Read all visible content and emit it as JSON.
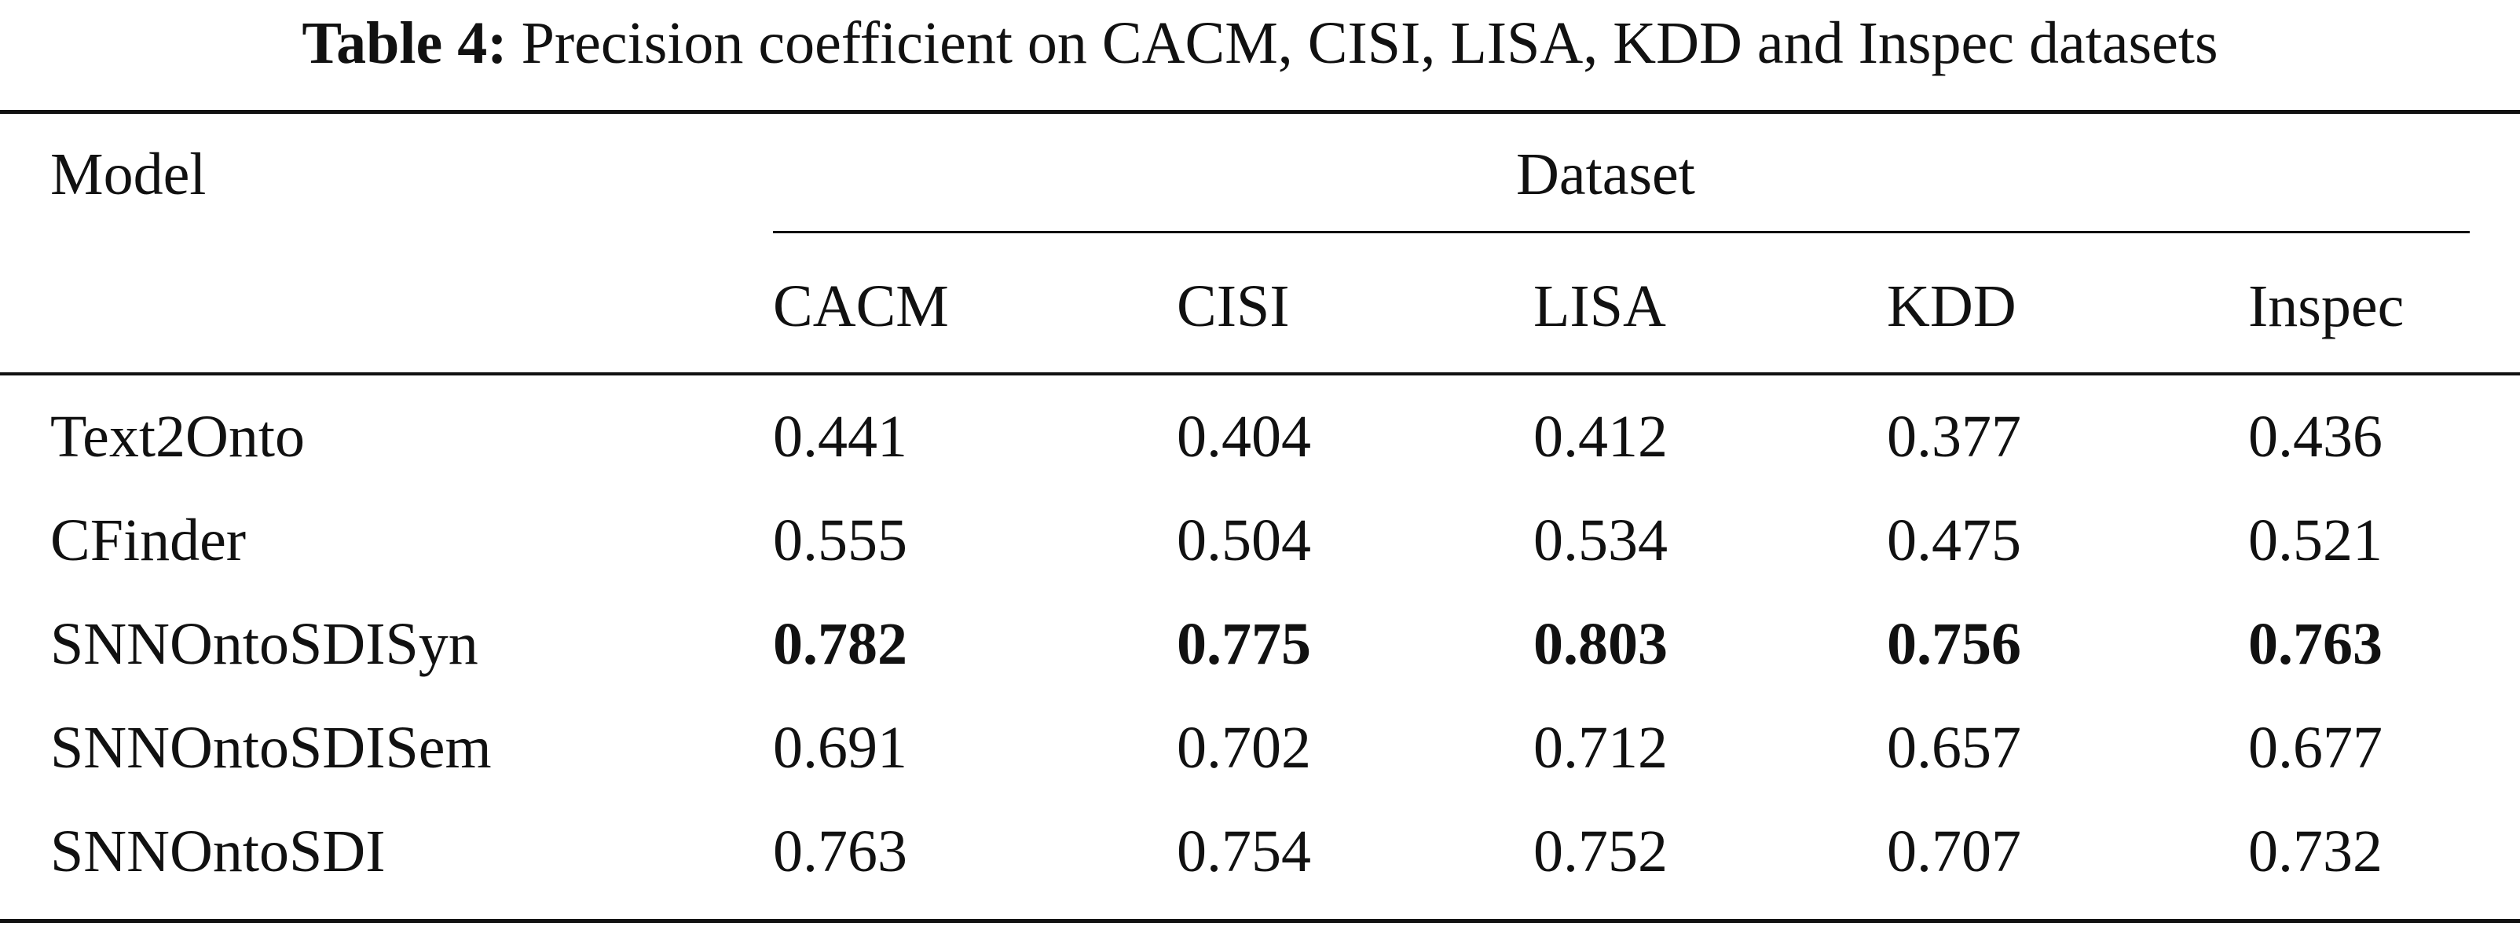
{
  "caption": {
    "label": "Table 4:",
    "text": "Precision coefficient on CACM, CISI, LISA, KDD and Inspec datasets"
  },
  "header": {
    "model": "Model",
    "group": "Dataset",
    "columns": [
      "CACM",
      "CISI",
      "LISA",
      "KDD",
      "Inspec"
    ]
  },
  "rows": [
    {
      "model": "Text2Onto",
      "values": [
        "0.441",
        "0.404",
        "0.412",
        "0.377",
        "0.436"
      ],
      "bold": false
    },
    {
      "model": "CFinder",
      "values": [
        "0.555",
        "0.504",
        "0.534",
        "0.475",
        "0.521"
      ],
      "bold": false
    },
    {
      "model": "SNNOntoSDISyn",
      "values": [
        "0.782",
        "0.775",
        "0.803",
        "0.756",
        "0.763"
      ],
      "bold": true
    },
    {
      "model": "SNNOntoSDISem",
      "values": [
        "0.691",
        "0.702",
        "0.712",
        "0.657",
        "0.677"
      ],
      "bold": false
    },
    {
      "model": "SNNOntoSDI",
      "values": [
        "0.763",
        "0.754",
        "0.752",
        "0.707",
        "0.732"
      ],
      "bold": false
    }
  ]
}
